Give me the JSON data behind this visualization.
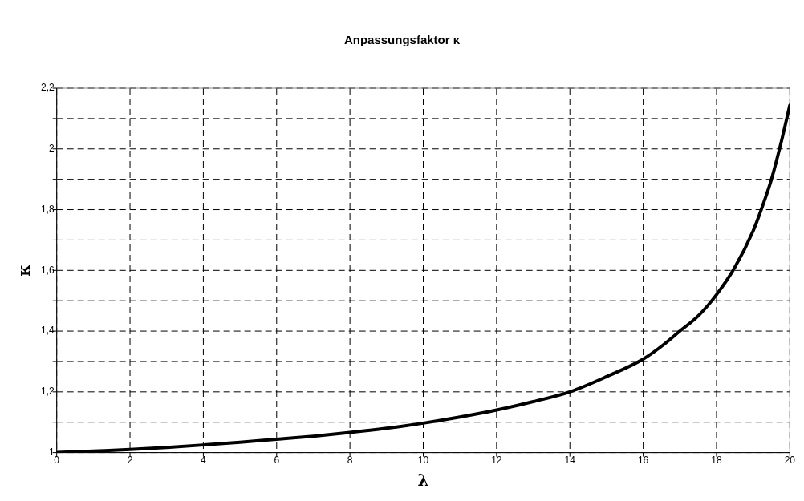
{
  "chart_data": {
    "type": "line",
    "title": "Anpassungsfaktor κ",
    "xlabel": "λ",
    "ylabel": "κ",
    "x": [
      0,
      1,
      2,
      3,
      4,
      5,
      6,
      7,
      8,
      9,
      10,
      11,
      12,
      13,
      14,
      15,
      16,
      16.5,
      17,
      17.5,
      18,
      18.5,
      19,
      19.25,
      19.5,
      19.75,
      20
    ],
    "series": [
      {
        "color": "#000000",
        "values": [
          1,
          1.005,
          1.01,
          1.017,
          1.025,
          1.034,
          1.044,
          1.054,
          1.066,
          1.08,
          1.097,
          1.117,
          1.14,
          1.168,
          1.2,
          1.25,
          1.308,
          1.35,
          1.4,
          1.45,
          1.52,
          1.61,
          1.73,
          1.81,
          1.9,
          2.015,
          2.144
        ]
      }
    ],
    "xlim": [
      0,
      20
    ],
    "xticks": [
      0,
      2,
      4,
      6,
      8,
      10,
      12,
      14,
      16,
      18,
      20
    ],
    "ylim": [
      1,
      2.2
    ],
    "yticks": [
      {
        "value": 1,
        "label": "1"
      },
      {
        "value": 1.1,
        "label": null
      },
      {
        "value": 1.2,
        "label": "1,2"
      },
      {
        "value": 1.3,
        "label": null
      },
      {
        "value": 1.4,
        "label": "1,4"
      },
      {
        "value": 1.5,
        "label": null
      },
      {
        "value": 1.6,
        "label": "1,6"
      },
      {
        "value": 1.7,
        "label": null
      },
      {
        "value": 1.8,
        "label": "1,8"
      },
      {
        "value": 1.9,
        "label": null
      },
      {
        "value": 2,
        "label": "2"
      },
      {
        "value": 2.1,
        "label": null
      },
      {
        "value": 2.2,
        "label": "2,2"
      }
    ],
    "grid": true,
    "legend": false,
    "marker": "none",
    "line_style": "solid"
  }
}
